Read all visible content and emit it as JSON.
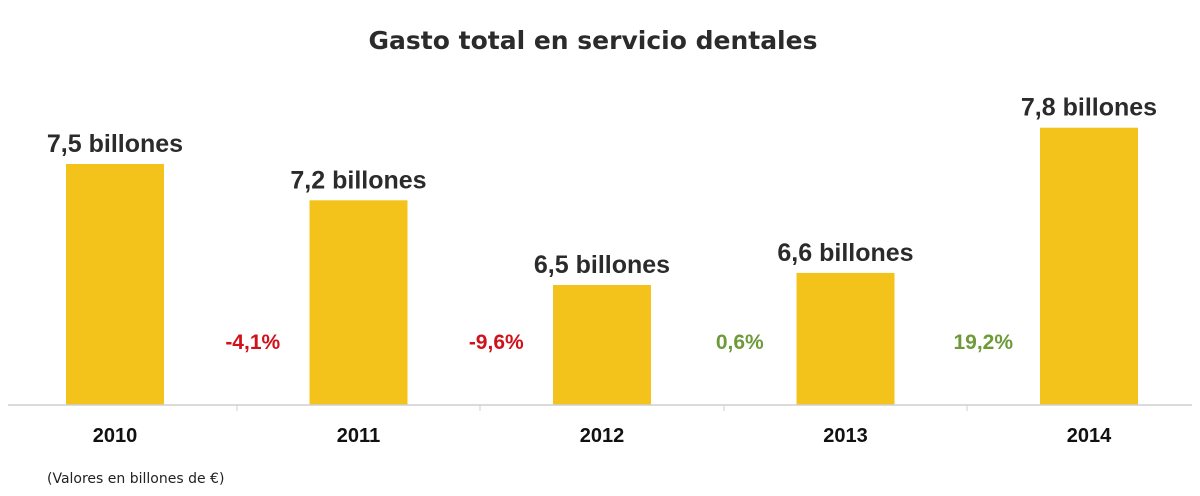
{
  "chart_data": {
    "type": "bar",
    "title": "Gasto total en servicio dentales",
    "categories": [
      "2010",
      "2011",
      "2012",
      "2013",
      "2014"
    ],
    "values": [
      7.5,
      7.2,
      6.5,
      6.6,
      7.8
    ],
    "data_labels": [
      "7,5 billones",
      "7,2 billones",
      "6,5 billones",
      "6,6 billones",
      "7,8 billones"
    ],
    "changes": [
      {
        "label": "-4,1%",
        "color": "#d0101a"
      },
      {
        "label": "-9,6%",
        "color": "#d0101a"
      },
      {
        "label": "0,6%",
        "color": "#6e9a3a"
      },
      {
        "label": "19,2%",
        "color": "#6e9a3a"
      }
    ],
    "bar_color": "#f4c31b",
    "footnote": "(Valores en billones de €)",
    "grid": false
  }
}
